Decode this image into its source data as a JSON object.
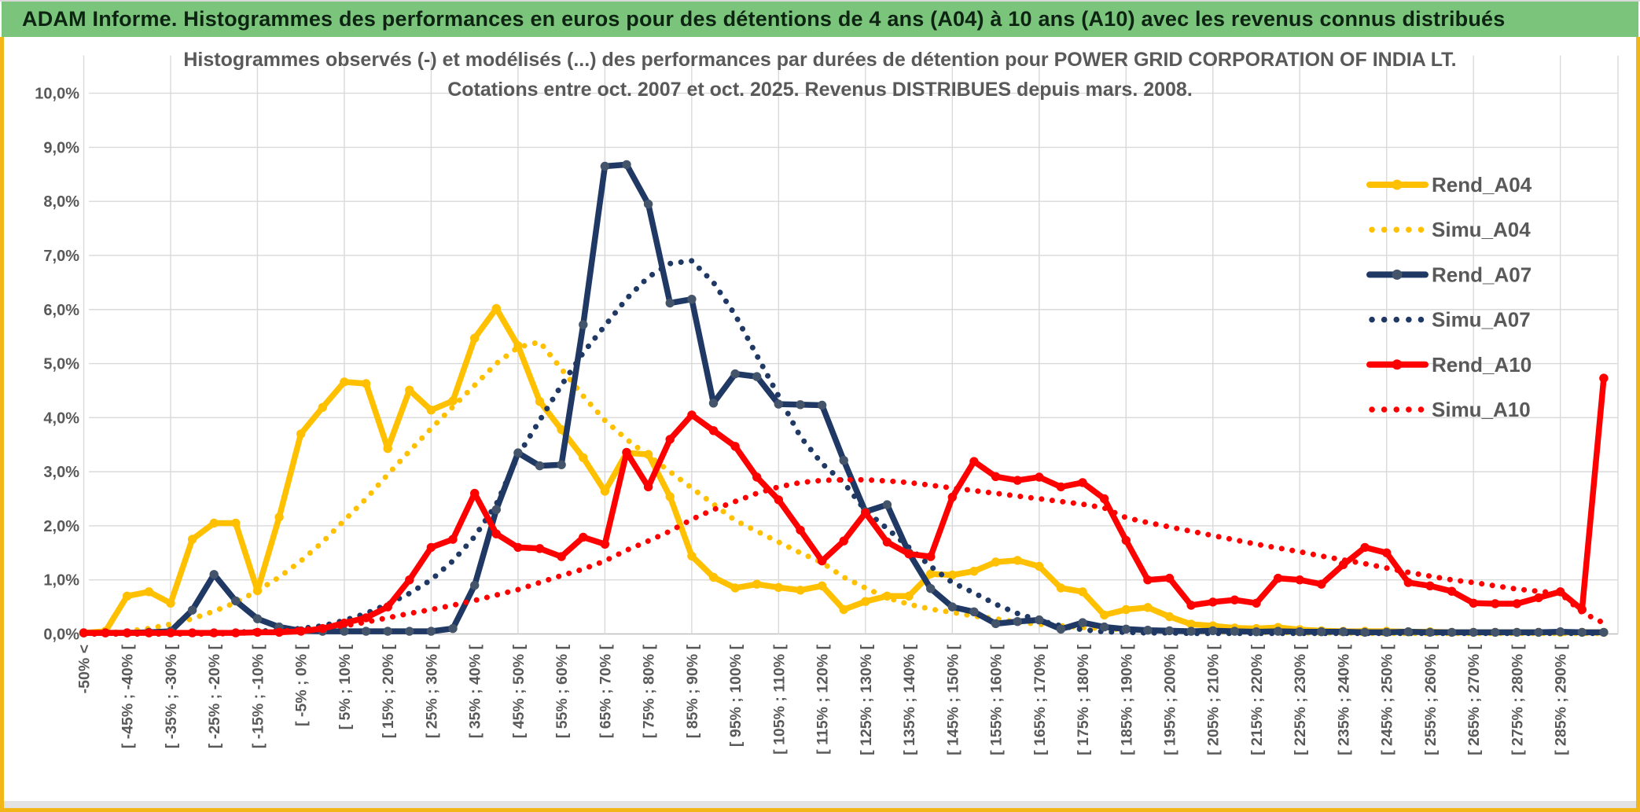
{
  "header": {
    "title": "ADAM Informe. Histogrammes des performances en euros pour des détentions de 4 ans (A04) à 10 ans (A10) avec les revenus connus distribués"
  },
  "chart": {
    "title_line1": "Histogrammes observés (-) et modélisés (...) des performances par durées de détention pour POWER GRID CORPORATION OF INDIA LT.",
    "title_line2": "Cotations entre oct. 2007 et oct. 2025. Revenus DISTRIBUES depuis mars. 2008."
  },
  "colors": {
    "gold": "#FFC000",
    "navy": "#1F3864",
    "navy_marker": "#44546A",
    "red": "#FF0000",
    "grid": "#D9D9D9",
    "axis": "#BFBFBF",
    "text": "#595959",
    "header_green": "#7BC47B",
    "frame_gold": "#F3B619"
  },
  "chart_data": {
    "type": "line",
    "title": "Histogrammes observés (-) et modélisés (...) des performances par durées de détention pour POWER GRID CORPORATION OF INDIA LT. Cotations entre oct. 2007 et oct. 2025. Revenus DISTRIBUES depuis mars. 2008.",
    "xlabel": "",
    "ylabel": "",
    "ylim": [
      0,
      10
    ],
    "grid": true,
    "legend_position": "right-inside",
    "y_tick_labels": [
      "10,0%",
      "9,0%",
      "8,0%",
      "7,0%",
      "6,0%",
      "5,0%",
      "4,0%",
      "3,0%",
      "2,0%",
      "1,0%",
      "0,0%"
    ],
    "x_tick_labels": [
      "-50% <",
      "[ -45% ; -40% [",
      "[ -35% ; -30% [",
      "[ -25% ; -20% [",
      "[ -15% ; -10% [",
      "[ -5% ; 0% [",
      "[ 5% ; 10% [",
      "[ 15% ; 20% [",
      "[ 25% ; 30% [",
      "[ 35% ; 40% [",
      "[ 45% ; 50% [",
      "[ 55% ; 60% [",
      "[ 65% ; 70% [",
      "[ 75% ; 80% [",
      "[ 85% ; 90% [",
      "[ 95% ; 100% [",
      "[ 105% ; 110% [",
      "[ 115% ; 120% [",
      "[ 125% ; 130% [",
      "[ 135% ; 140% [",
      "[ 145% ; 150% [",
      "[ 155% ; 160% [",
      "[ 165% ; 170% [",
      "[ 175% ; 180% [",
      "[ 185% ; 190% [",
      "[ 195% ; 200% [",
      "[ 205% ; 210% [",
      "[ 215% ; 220% [",
      "[ 225% ; 230% [",
      "[ 235% ; 240% [",
      "[ 245% ; 250% [",
      "[ 255% ; 260% [",
      "[ 265% ; 270% [",
      "[ 275% ; 280% [",
      "[ 285% ; 290% ["
    ],
    "buckets_per_tick_label": 2,
    "n_points": 71,
    "series": [
      {
        "name": "Simu_A04",
        "style": "dotted",
        "color": "#FFC000",
        "values": [
          0,
          0.02,
          0.05,
          0.1,
          0.18,
          0.28,
          0.42,
          0.58,
          0.8,
          1.05,
          1.35,
          1.7,
          2.1,
          2.5,
          2.95,
          3.38,
          3.8,
          4.2,
          4.6,
          5.0,
          5.3,
          5.4,
          4.9,
          4.4,
          3.95,
          3.6,
          3.3,
          3.0,
          2.7,
          2.4,
          2.1,
          1.9,
          1.7,
          1.5,
          1.32,
          1.05,
          0.85,
          0.67,
          0.55,
          0.46,
          0.4,
          0.33,
          0.28,
          0.22,
          0.18,
          0.15,
          0.12,
          0.1,
          0.08,
          0.07,
          0.06,
          0.05,
          0.04,
          0.04,
          0.03,
          0.03,
          0.02,
          0.02,
          0.02,
          0.01,
          0.01,
          0.01,
          0.01,
          0.01,
          0.01,
          0.01,
          0.01,
          0.01,
          0.01,
          0.01,
          0.01
        ]
      },
      {
        "name": "Rend_A04",
        "style": "solid",
        "color": "#FFC000",
        "marker": "#FFC000",
        "values": [
          0.02,
          0.05,
          0.7,
          0.78,
          0.57,
          1.75,
          2.05,
          2.05,
          0.8,
          2.16,
          3.7,
          4.19,
          4.66,
          4.63,
          3.43,
          4.51,
          4.14,
          4.31,
          5.47,
          6.02,
          5.33,
          4.3,
          3.78,
          3.26,
          2.64,
          3.35,
          3.32,
          2.54,
          1.44,
          1.05,
          0.85,
          0.92,
          0.86,
          0.81,
          0.89,
          0.45,
          0.6,
          0.7,
          0.7,
          1.11,
          1.09,
          1.16,
          1.33,
          1.36,
          1.25,
          0.85,
          0.78,
          0.35,
          0.45,
          0.49,
          0.32,
          0.18,
          0.15,
          0.11,
          0.1,
          0.12,
          0.08,
          0.06,
          0.05,
          0.05,
          0.05,
          0.04,
          0.04,
          0.03,
          0.03,
          0.03,
          0.03,
          0.03,
          0.03,
          0.03,
          0.03
        ]
      },
      {
        "name": "Simu_A07",
        "style": "dotted",
        "color": "#1F3864",
        "values": [
          0,
          0,
          0,
          0,
          0,
          0.01,
          0.02,
          0.03,
          0.05,
          0.07,
          0.1,
          0.15,
          0.25,
          0.38,
          0.55,
          0.75,
          1.0,
          1.35,
          1.8,
          2.4,
          3.3,
          3.95,
          4.6,
          5.2,
          5.7,
          6.2,
          6.6,
          6.85,
          6.9,
          6.5,
          5.9,
          5.15,
          4.4,
          3.65,
          3.15,
          2.8,
          2.28,
          1.95,
          1.6,
          1.25,
          0.95,
          0.76,
          0.55,
          0.38,
          0.25,
          0.15,
          0.08,
          0.04,
          0.03,
          0.02,
          0.02,
          0.01,
          0.01,
          0.01,
          0.01,
          0.01,
          0.01,
          0.01,
          0.01,
          0.01,
          0.01,
          0.01,
          0.01,
          0.01,
          0.01,
          0.01,
          0.01,
          0.01,
          0.01,
          0.01,
          0.01
        ]
      },
      {
        "name": "Rend_A07",
        "style": "solid",
        "color": "#1F3864",
        "marker": "#44546A",
        "values": [
          0.02,
          0.02,
          0.02,
          0.03,
          0.05,
          0.44,
          1.1,
          0.61,
          0.28,
          0.13,
          0.06,
          0.05,
          0.05,
          0.05,
          0.05,
          0.05,
          0.05,
          0.1,
          0.9,
          2.3,
          3.35,
          3.11,
          3.13,
          5.72,
          8.65,
          8.68,
          7.95,
          6.12,
          6.19,
          4.27,
          4.81,
          4.76,
          4.25,
          4.24,
          4.23,
          3.21,
          2.26,
          2.39,
          1.5,
          0.84,
          0.5,
          0.41,
          0.19,
          0.23,
          0.26,
          0.09,
          0.21,
          0.13,
          0.09,
          0.07,
          0.06,
          0.05,
          0.06,
          0.05,
          0.04,
          0.05,
          0.04,
          0.04,
          0.04,
          0.03,
          0.03,
          0.04,
          0.03,
          0.03,
          0.03,
          0.03,
          0.03,
          0.03,
          0.04,
          0.03,
          0.03
        ]
      },
      {
        "name": "Simu_A10",
        "style": "dotted",
        "color": "#FF0000",
        "values": [
          0,
          0,
          0,
          0,
          0,
          0,
          0,
          0.01,
          0.03,
          0.05,
          0.08,
          0.11,
          0.15,
          0.22,
          0.3,
          0.38,
          0.45,
          0.53,
          0.62,
          0.72,
          0.82,
          0.95,
          1.08,
          1.2,
          1.35,
          1.55,
          1.72,
          1.9,
          2.12,
          2.3,
          2.45,
          2.6,
          2.72,
          2.8,
          2.84,
          2.85,
          2.85,
          2.83,
          2.8,
          2.75,
          2.7,
          2.65,
          2.6,
          2.55,
          2.5,
          2.45,
          2.4,
          2.33,
          2.15,
          2.06,
          1.98,
          1.9,
          1.82,
          1.74,
          1.66,
          1.59,
          1.52,
          1.44,
          1.37,
          1.3,
          1.22,
          1.14,
          1.07,
          1.0,
          0.95,
          0.89,
          0.83,
          0.79,
          0.75,
          0.4,
          0.2
        ]
      },
      {
        "name": "Rend_A10",
        "style": "solid",
        "color": "#FF0000",
        "marker": "#FF0000",
        "values": [
          0.02,
          0.02,
          0.02,
          0.02,
          0.02,
          0.02,
          0.02,
          0.02,
          0.03,
          0.03,
          0.05,
          0.1,
          0.2,
          0.3,
          0.5,
          1.0,
          1.6,
          1.75,
          2.6,
          1.85,
          1.6,
          1.58,
          1.43,
          1.79,
          1.66,
          3.36,
          2.72,
          3.6,
          4.05,
          3.76,
          3.47,
          2.9,
          2.48,
          1.92,
          1.35,
          1.72,
          2.24,
          1.7,
          1.48,
          1.43,
          2.53,
          3.19,
          2.91,
          2.84,
          2.9,
          2.72,
          2.8,
          2.5,
          1.73,
          1.0,
          1.03,
          0.53,
          0.59,
          0.63,
          0.57,
          1.03,
          1.0,
          0.92,
          1.28,
          1.6,
          1.5,
          0.95,
          0.89,
          0.79,
          0.57,
          0.56,
          0.56,
          0.67,
          0.78,
          0.45,
          4.73
        ]
      }
    ],
    "legend": [
      {
        "label": "Rend_A04",
        "style": "solid",
        "color": "#FFC000",
        "marker": "#FFC000"
      },
      {
        "label": "Simu_A04",
        "style": "dotted",
        "color": "#FFC000"
      },
      {
        "label": "Rend_A07",
        "style": "solid",
        "color": "#1F3864",
        "marker": "#44546A"
      },
      {
        "label": "Simu_A07",
        "style": "dotted",
        "color": "#1F3864"
      },
      {
        "label": "Rend_A10",
        "style": "solid",
        "color": "#FF0000",
        "marker": "#FF0000"
      },
      {
        "label": "Simu_A10",
        "style": "dotted",
        "color": "#FF0000"
      }
    ]
  }
}
